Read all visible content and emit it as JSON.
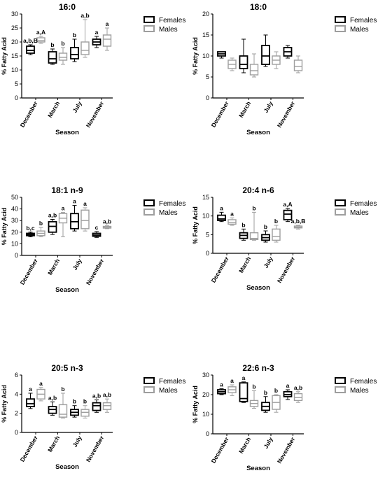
{
  "figure": {
    "legend": {
      "females": "Females",
      "males": "Males"
    },
    "xlabel": "Season",
    "ylabel": "% Fatty Acid",
    "colors": {
      "females": "#000000",
      "males": "#9e9e9e"
    }
  },
  "chart_data": [
    {
      "type": "box",
      "title": "16:0",
      "xlabel": "Season",
      "ylabel": "% Fatty Acid",
      "ylim": [
        0,
        30
      ],
      "yticks": [
        0,
        5,
        10,
        15,
        20,
        25,
        30
      ],
      "categories": [
        "December",
        "March",
        "July",
        "November"
      ],
      "series": [
        {
          "name": "Females",
          "boxes": [
            {
              "min": 15.5,
              "q1": 16,
              "median": 17,
              "q3": 18.5,
              "max": 19
            },
            {
              "min": 12,
              "q1": 12.5,
              "median": 14,
              "q3": 16.5,
              "max": 17.5
            },
            {
              "min": 13,
              "q1": 14,
              "median": 15.5,
              "q3": 18,
              "max": 21
            },
            {
              "min": 18,
              "q1": 19,
              "median": 20,
              "q3": 21,
              "max": 22
            }
          ]
        },
        {
          "name": "Males",
          "boxes": [
            {
              "min": 19.5,
              "q1": 20,
              "median": 20.5,
              "q3": 21.5,
              "max": 22
            },
            {
              "min": 12,
              "q1": 13.5,
              "median": 14.5,
              "q3": 16,
              "max": 18
            },
            {
              "min": 14.5,
              "q1": 15.5,
              "median": 17,
              "q3": 20,
              "max": 28
            },
            {
              "min": 17,
              "q1": 18.5,
              "median": 21,
              "q3": 22.5,
              "max": 25
            }
          ]
        }
      ],
      "annotations": [
        {
          "category": "December",
          "series": "Females",
          "text": "a,b,B",
          "y": 19
        },
        {
          "category": "December",
          "series": "Males",
          "text": "a,A",
          "y": 22
        },
        {
          "category": "March",
          "series": "Females",
          "text": "b",
          "y": 17.5
        },
        {
          "category": "March",
          "series": "Males",
          "text": "b",
          "y": 18
        },
        {
          "category": "July",
          "series": "Females",
          "text": "b",
          "y": 21
        },
        {
          "category": "July",
          "series": "Males",
          "text": "a,b",
          "y": 28
        },
        {
          "category": "November",
          "series": "Females",
          "text": "a",
          "y": 22
        },
        {
          "category": "November",
          "series": "Males",
          "text": "a",
          "y": 25
        }
      ]
    },
    {
      "type": "box",
      "title": "18:0",
      "xlabel": "Season",
      "ylabel": "% Fatty Acid",
      "ylim": [
        0,
        20
      ],
      "yticks": [
        0,
        5,
        10,
        15,
        20
      ],
      "categories": [
        "December",
        "March",
        "July",
        "November"
      ],
      "series": [
        {
          "name": "Females",
          "boxes": [
            {
              "min": 9.5,
              "q1": 10,
              "median": 10.5,
              "q3": 11,
              "max": 11
            },
            {
              "min": 6,
              "q1": 7,
              "median": 8,
              "q3": 10,
              "max": 14
            },
            {
              "min": 7.5,
              "q1": 8,
              "median": 10,
              "q3": 12.5,
              "max": 15
            },
            {
              "min": 9.5,
              "q1": 10,
              "median": 11,
              "q3": 12,
              "max": 12.5
            }
          ]
        },
        {
          "name": "Males",
          "boxes": [
            {
              "min": 6.5,
              "q1": 7,
              "median": 8,
              "q3": 9,
              "max": 9.5
            },
            {
              "min": 5,
              "q1": 5.5,
              "median": 6.5,
              "q3": 8,
              "max": 10.5
            },
            {
              "min": 7,
              "q1": 8,
              "median": 9,
              "q3": 10,
              "max": 11
            },
            {
              "min": 6,
              "q1": 6.5,
              "median": 7.5,
              "q3": 9,
              "max": 10
            }
          ]
        }
      ],
      "annotations": []
    },
    {
      "type": "box",
      "title": "18:1 n-9",
      "xlabel": "Season",
      "ylabel": "% Fatty Acid",
      "ylim": [
        0,
        50
      ],
      "yticks": [
        0,
        10,
        20,
        30,
        40,
        50
      ],
      "categories": [
        "December",
        "March",
        "July",
        "November"
      ],
      "series": [
        {
          "name": "Females",
          "boxes": [
            {
              "min": 16,
              "q1": 17,
              "median": 18,
              "q3": 19,
              "max": 20
            },
            {
              "min": 18,
              "q1": 20,
              "median": 25,
              "q3": 29,
              "max": 31
            },
            {
              "min": 21,
              "q1": 23,
              "median": 29,
              "q3": 36,
              "max": 43
            },
            {
              "min": 15.5,
              "q1": 16.5,
              "median": 17.5,
              "q3": 19,
              "max": 20.5
            }
          ]
        },
        {
          "name": "Males",
          "boxes": [
            {
              "min": 16,
              "q1": 17,
              "median": 19,
              "q3": 21,
              "max": 24
            },
            {
              "min": 16,
              "q1": 28,
              "median": 32,
              "q3": 36,
              "max": 37
            },
            {
              "min": 21,
              "q1": 23,
              "median": 30,
              "q3": 39,
              "max": 41
            },
            {
              "min": 23,
              "q1": 23.5,
              "median": 24,
              "q3": 25,
              "max": 25.5
            }
          ]
        }
      ],
      "annotations": [
        {
          "category": "December",
          "series": "Females",
          "text": "b,c",
          "y": 20
        },
        {
          "category": "December",
          "series": "Males",
          "text": "b",
          "y": 24
        },
        {
          "category": "March",
          "series": "Females",
          "text": "a,b",
          "y": 31
        },
        {
          "category": "March",
          "series": "Males",
          "text": "a",
          "y": 37
        },
        {
          "category": "July",
          "series": "Females",
          "text": "a",
          "y": 43
        },
        {
          "category": "July",
          "series": "Males",
          "text": "a",
          "y": 41
        },
        {
          "category": "November",
          "series": "Females",
          "text": "c",
          "y": 20.5
        },
        {
          "category": "November",
          "series": "Males",
          "text": "a,b",
          "y": 25.5
        }
      ]
    },
    {
      "type": "box",
      "title": "20:4 n-6",
      "xlabel": "Season",
      "ylabel": "% Fatty Acid",
      "ylim": [
        0,
        15
      ],
      "yticks": [
        0,
        5,
        10,
        15
      ],
      "categories": [
        "December",
        "March",
        "July",
        "November"
      ],
      "series": [
        {
          "name": "Females",
          "boxes": [
            {
              "min": 8.5,
              "q1": 8.8,
              "median": 9.2,
              "q3": 10.2,
              "max": 11
            },
            {
              "min": 3.5,
              "q1": 4,
              "median": 4.8,
              "q3": 5.5,
              "max": 6.5
            },
            {
              "min": 3,
              "q1": 3.5,
              "median": 4.2,
              "q3": 5,
              "max": 6
            },
            {
              "min": 8.5,
              "q1": 9,
              "median": 10.5,
              "q3": 11.5,
              "max": 12
            }
          ]
        },
        {
          "name": "Males",
          "boxes": [
            {
              "min": 7.5,
              "q1": 7.8,
              "median": 8.3,
              "q3": 9,
              "max": 9.5
            },
            {
              "min": 3.5,
              "q1": 3.7,
              "median": 4,
              "q3": 5.5,
              "max": 11
            },
            {
              "min": 3,
              "q1": 3.5,
              "median": 4.5,
              "q3": 6.5,
              "max": 7.5
            },
            {
              "min": 6.5,
              "q1": 6.8,
              "median": 7,
              "q3": 7.3,
              "max": 7.5
            }
          ]
        }
      ],
      "annotations": [
        {
          "category": "December",
          "series": "Females",
          "text": "a",
          "y": 11
        },
        {
          "category": "December",
          "series": "Males",
          "text": "a",
          "y": 9.5
        },
        {
          "category": "March",
          "series": "Females",
          "text": "b",
          "y": 6.5
        },
        {
          "category": "March",
          "series": "Males",
          "text": "b",
          "y": 11
        },
        {
          "category": "July",
          "series": "Females",
          "text": "b",
          "y": 6
        },
        {
          "category": "July",
          "series": "Males",
          "text": "b",
          "y": 7.5
        },
        {
          "category": "November",
          "series": "Females",
          "text": "a,A",
          "y": 12
        },
        {
          "category": "November",
          "series": "Males",
          "text": "a,b,B",
          "y": 7.5
        }
      ]
    },
    {
      "type": "box",
      "title": "20:5 n-3",
      "xlabel": "Season",
      "ylabel": "% Fatty Acid",
      "ylim": [
        0,
        6
      ],
      "yticks": [
        0,
        2,
        4,
        6
      ],
      "categories": [
        "December",
        "March",
        "July",
        "November"
      ],
      "series": [
        {
          "name": "Females",
          "boxes": [
            {
              "min": 2.5,
              "q1": 2.7,
              "median": 3,
              "q3": 3.5,
              "max": 4.1
            },
            {
              "min": 1.8,
              "q1": 2,
              "median": 2.4,
              "q3": 2.7,
              "max": 3.2
            },
            {
              "min": 1.6,
              "q1": 1.8,
              "median": 2.1,
              "q3": 2.4,
              "max": 2.8
            },
            {
              "min": 2.1,
              "q1": 2.3,
              "median": 2.8,
              "q3": 3.1,
              "max": 3.4
            }
          ]
        },
        {
          "name": "Males",
          "boxes": [
            {
              "min": 3.3,
              "q1": 3.5,
              "median": 4,
              "q3": 4.5,
              "max": 4.7
            },
            {
              "min": 1.5,
              "q1": 1.6,
              "median": 1.9,
              "q3": 2.9,
              "max": 4.1
            },
            {
              "min": 1.5,
              "q1": 1.7,
              "median": 2.1,
              "q3": 2.4,
              "max": 2.8
            },
            {
              "min": 2.1,
              "q1": 2.4,
              "median": 2.8,
              "q3": 3.1,
              "max": 3.5
            }
          ]
        }
      ],
      "annotations": [
        {
          "category": "December",
          "series": "Females",
          "text": "a",
          "y": 4.1
        },
        {
          "category": "December",
          "series": "Males",
          "text": "a",
          "y": 4.7
        },
        {
          "category": "March",
          "series": "Females",
          "text": "a,b",
          "y": 3.2
        },
        {
          "category": "March",
          "series": "Males",
          "text": "b",
          "y": 4.1
        },
        {
          "category": "July",
          "series": "Females",
          "text": "b",
          "y": 2.8
        },
        {
          "category": "July",
          "series": "Males",
          "text": "b",
          "y": 2.8
        },
        {
          "category": "November",
          "series": "Females",
          "text": "a,b",
          "y": 3.4
        },
        {
          "category": "November",
          "series": "Males",
          "text": "a,b",
          "y": 3.5
        }
      ]
    },
    {
      "type": "box",
      "title": "22:6 n-3",
      "xlabel": "Season",
      "ylabel": "% Fatty Acid",
      "ylim": [
        0,
        30
      ],
      "yticks": [
        0,
        10,
        20,
        30
      ],
      "categories": [
        "December",
        "March",
        "July",
        "November"
      ],
      "series": [
        {
          "name": "Females",
          "boxes": [
            {
              "min": 20,
              "q1": 20.5,
              "median": 21.5,
              "q3": 22.5,
              "max": 23
            },
            {
              "min": 16,
              "q1": 16.5,
              "median": 18,
              "q3": 26,
              "max": 26.5
            },
            {
              "min": 11,
              "q1": 12,
              "median": 14,
              "q3": 16,
              "max": 19
            },
            {
              "min": 17.5,
              "q1": 19,
              "median": 20,
              "q3": 21.5,
              "max": 22.5
            }
          ]
        },
        {
          "name": "Males",
          "boxes": [
            {
              "min": 19.5,
              "q1": 21,
              "median": 22.5,
              "q3": 24,
              "max": 25
            },
            {
              "min": 13,
              "q1": 14,
              "median": 15.5,
              "q3": 17,
              "max": 22
            },
            {
              "min": 11,
              "q1": 12.5,
              "median": 16,
              "q3": 19.5,
              "max": 20
            },
            {
              "min": 16,
              "q1": 17,
              "median": 18.5,
              "q3": 20.5,
              "max": 21.5
            }
          ]
        }
      ],
      "annotations": [
        {
          "category": "December",
          "series": "Females",
          "text": "a",
          "y": 23
        },
        {
          "category": "December",
          "series": "Males",
          "text": "a",
          "y": 25
        },
        {
          "category": "March",
          "series": "Females",
          "text": "a",
          "y": 26.5
        },
        {
          "category": "March",
          "series": "Males",
          "text": "b",
          "y": 22
        },
        {
          "category": "July",
          "series": "Females",
          "text": "b",
          "y": 19
        },
        {
          "category": "July",
          "series": "Males",
          "text": "b",
          "y": 20
        },
        {
          "category": "November",
          "series": "Females",
          "text": "a",
          "y": 22.5
        },
        {
          "category": "November",
          "series": "Males",
          "text": "a,b",
          "y": 21.5
        }
      ]
    }
  ]
}
